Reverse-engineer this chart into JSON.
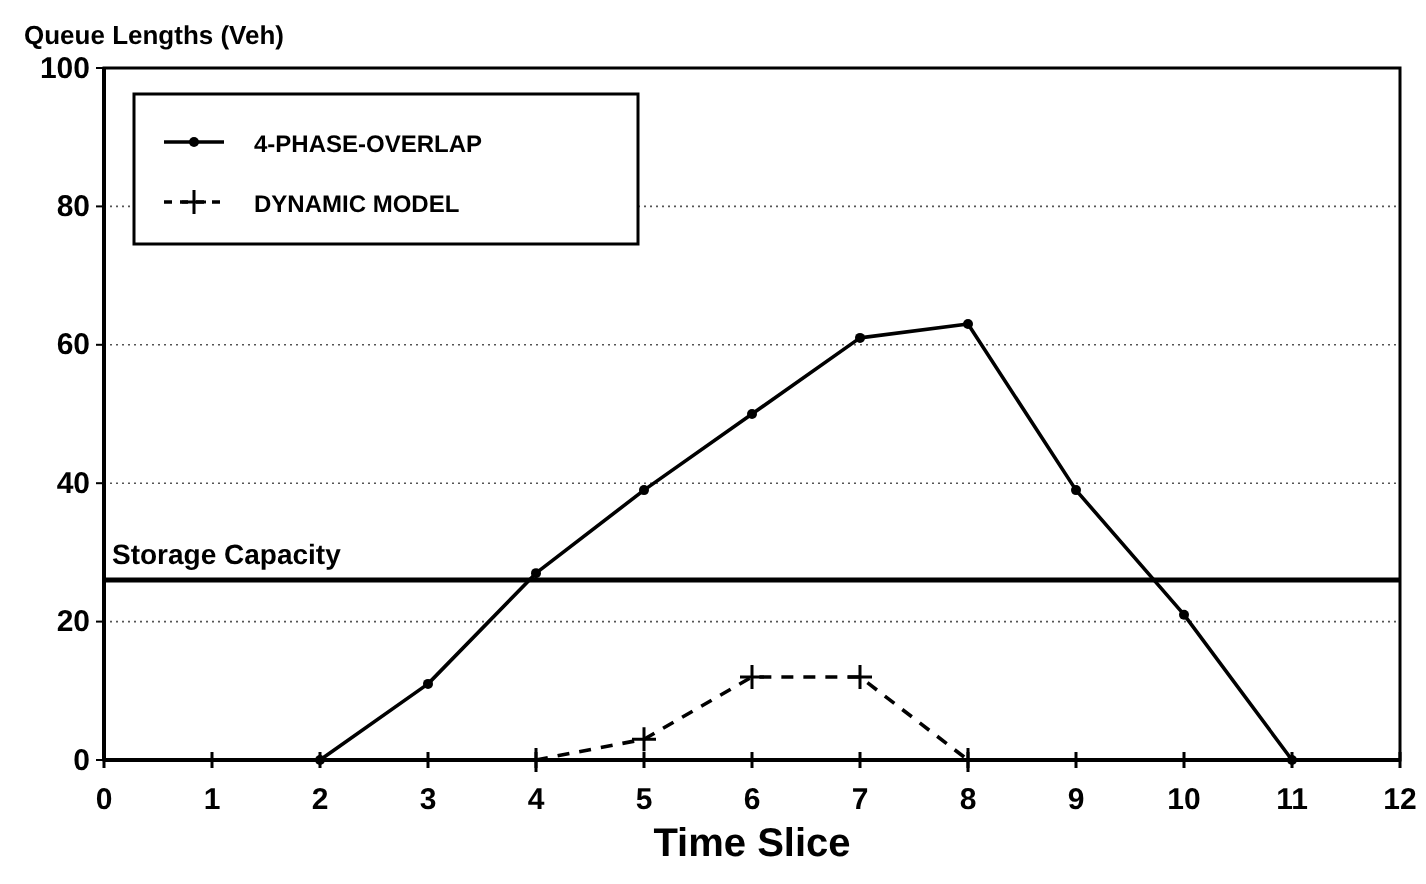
{
  "chart_data": {
    "type": "line",
    "ylabel": "Queue Lengths (Veh)",
    "xlabel": "Time Slice",
    "xlim": [
      0,
      12
    ],
    "xticks": [
      0,
      1,
      2,
      3,
      4,
      5,
      6,
      7,
      8,
      9,
      10,
      11,
      12
    ],
    "ylim": [
      0,
      100
    ],
    "yticks": [
      0,
      20,
      40,
      60,
      80,
      100
    ],
    "grid": "y",
    "legend": "top left",
    "series": [
      {
        "name": "4-PHASE-OVERLAP",
        "color": "#000000",
        "x": [
          2,
          3,
          4,
          5,
          6,
          7,
          8,
          9,
          10,
          11
        ],
        "values": [
          0,
          11,
          27,
          39,
          50,
          61,
          63,
          39,
          21,
          0
        ],
        "marker": "circle",
        "line_style": "solid"
      },
      {
        "name": "DYNAMIC MODEL",
        "color": "#000000",
        "x": [
          4,
          5,
          6,
          7,
          8
        ],
        "values": [
          0,
          3,
          12,
          12,
          0
        ],
        "marker": "cross",
        "line_style": "dashed"
      }
    ],
    "ref_lines": [
      {
        "axis": "y",
        "value": 26,
        "label": "Storage Capacity",
        "color": "#000000"
      }
    ]
  }
}
